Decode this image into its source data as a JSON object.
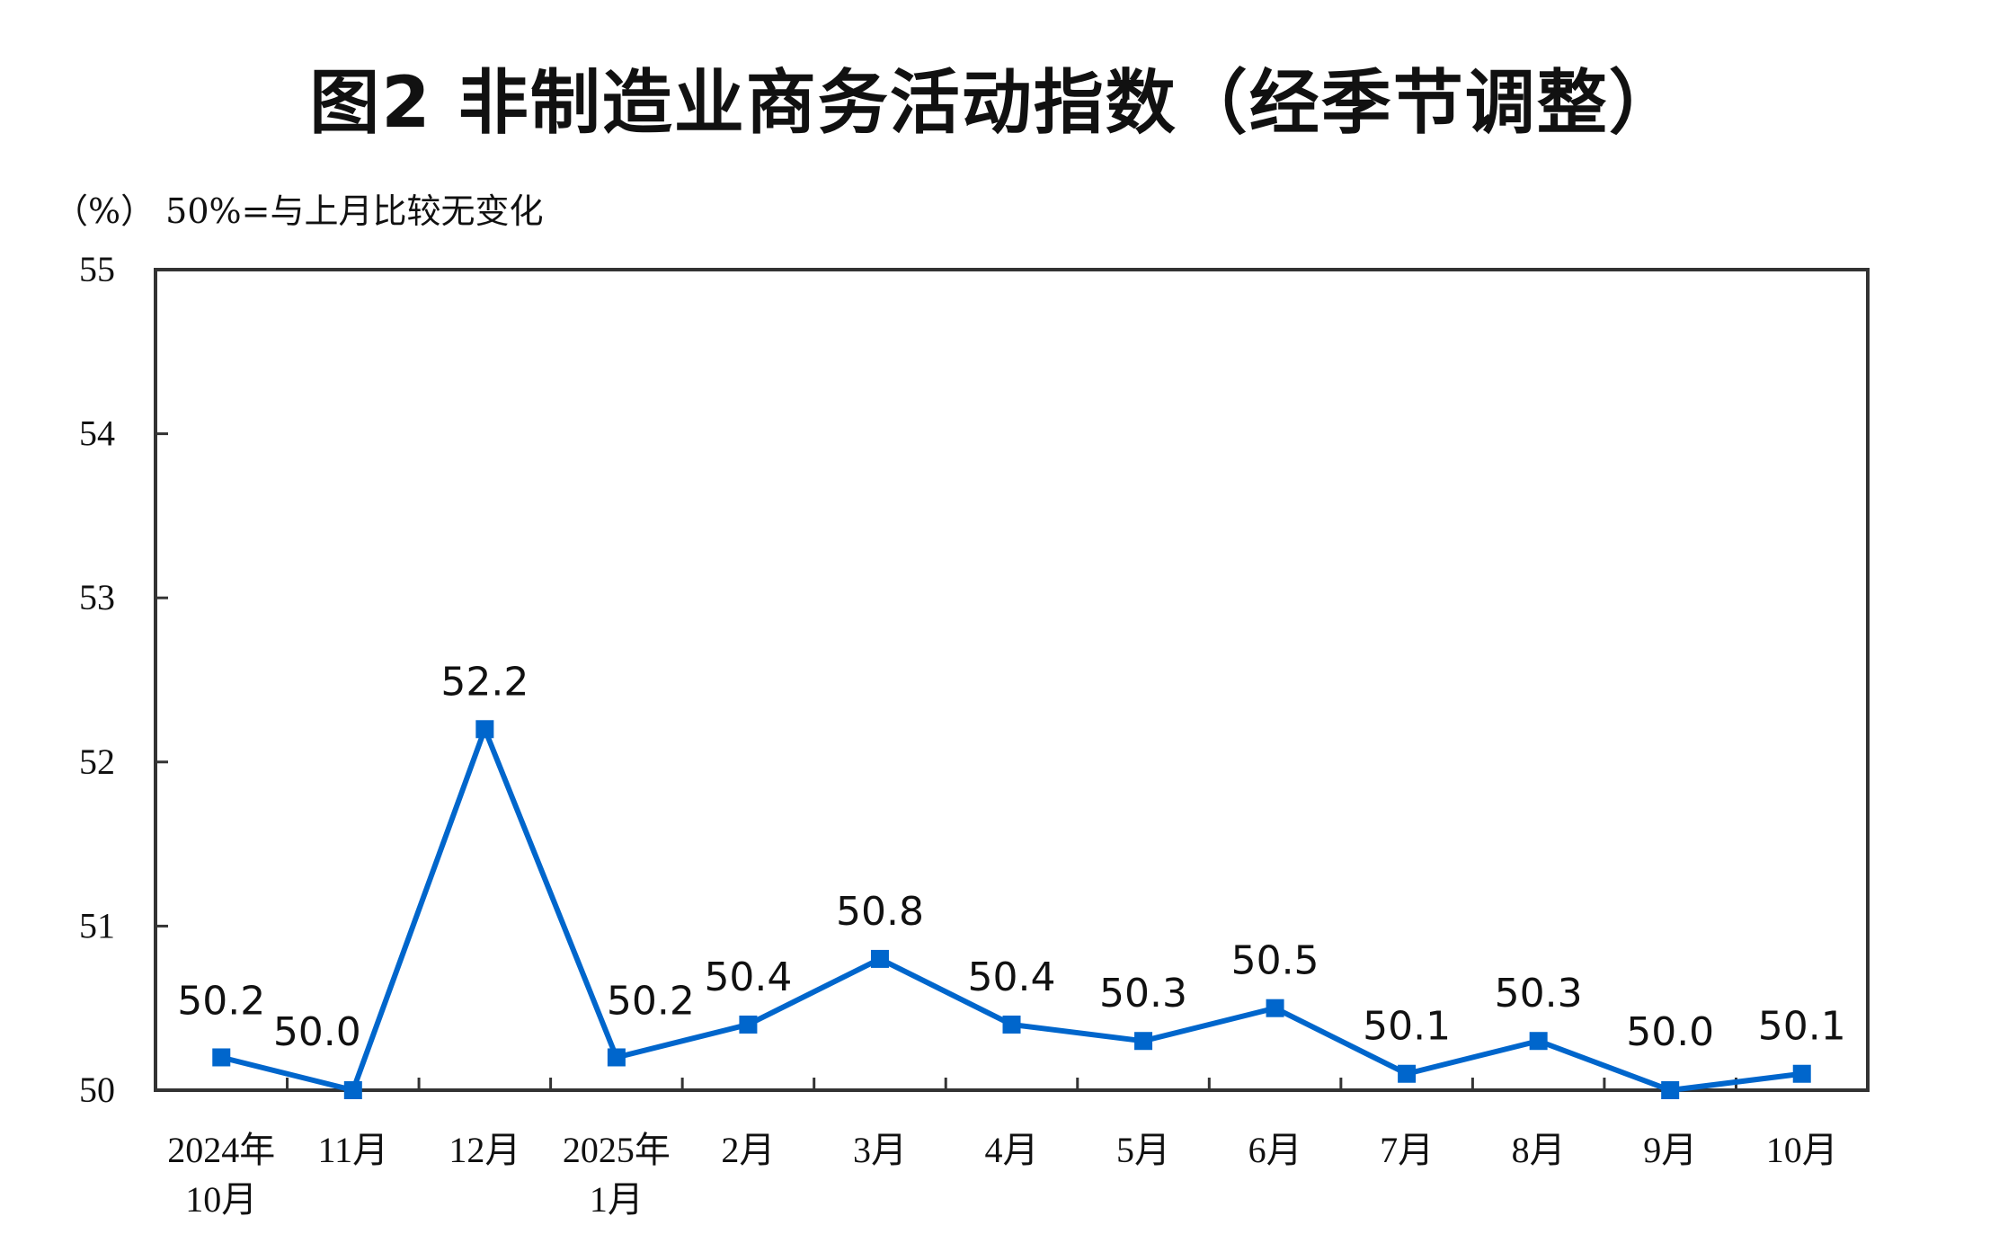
{
  "chart_data": {
    "type": "line",
    "title": "图2  非制造业商务活动指数（经季节调整）",
    "ylabel": "（%）  50%=与上月比较无变化",
    "xlabel": "",
    "categories": [
      [
        "2024年",
        "10月"
      ],
      [
        "11月"
      ],
      [
        "12月"
      ],
      [
        "2025年",
        "1月"
      ],
      [
        "2月"
      ],
      [
        "3月"
      ],
      [
        "4月"
      ],
      [
        "5月"
      ],
      [
        "6月"
      ],
      [
        "7月"
      ],
      [
        "8月"
      ],
      [
        "9月"
      ],
      [
        "10月"
      ]
    ],
    "values": [
      50.2,
      50.0,
      52.2,
      50.2,
      50.4,
      50.8,
      50.4,
      50.3,
      50.5,
      50.1,
      50.3,
      50.0,
      50.1
    ],
    "data_labels": [
      "50.2",
      "50.0",
      "52.2",
      "50.2",
      "50.4",
      "50.8",
      "50.4",
      "50.3",
      "50.5",
      "50.1",
      "50.3",
      "50.0",
      "50.1"
    ],
    "ylim": [
      50,
      55
    ],
    "yticks": [
      "50",
      "51",
      "52",
      "53",
      "54",
      "55"
    ],
    "grid": false,
    "legend": "none",
    "colors": {
      "line": "#0066cc",
      "axis": "#333333"
    }
  }
}
